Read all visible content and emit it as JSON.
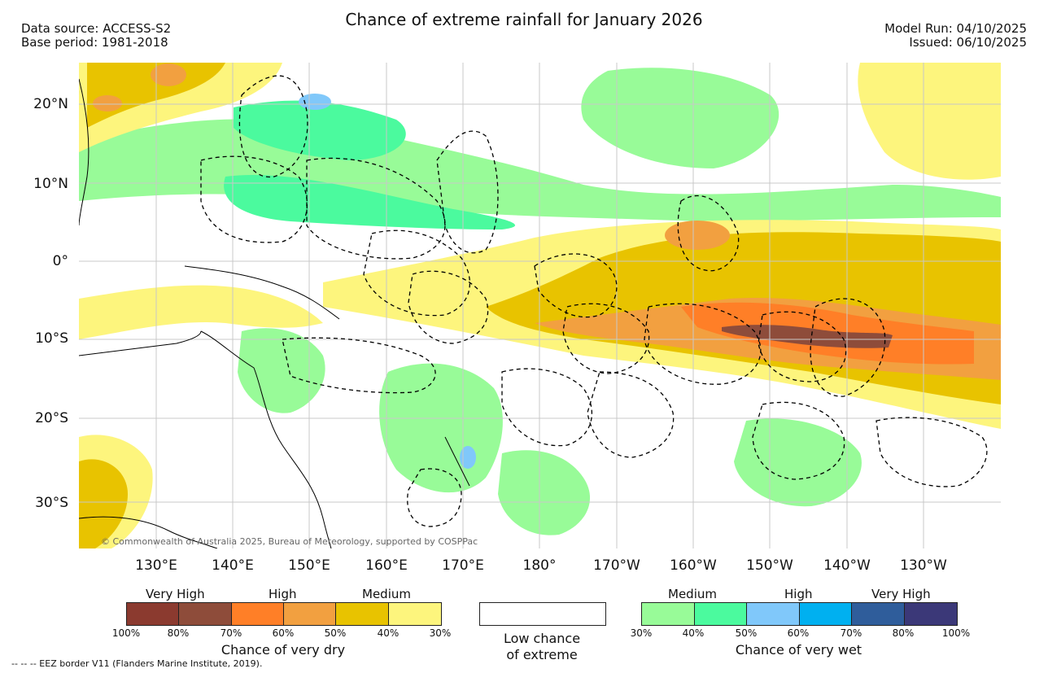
{
  "header": {
    "title": "Chance of extreme rainfall for January 2026",
    "data_source": "Data source: ACCESS-S2",
    "base_period": "Base period: 1981-2018",
    "model_run": "Model Run: 04/10/2025",
    "issued": "Issued: 06/10/2025"
  },
  "map": {
    "lat_labels": [
      "20°N",
      "10°N",
      "0°",
      "10°S",
      "20°S",
      "30°S"
    ],
    "lon_labels": [
      "130°E",
      "140°E",
      "150°E",
      "160°E",
      "170°E",
      "180°",
      "170°W",
      "160°W",
      "150°W",
      "140°W",
      "130°W"
    ],
    "copyright": "© Commonwealth of Australia 2025, Bureau of Meteorology, supported by COSPPac"
  },
  "legend": {
    "dry": {
      "category_labels": [
        "Very High",
        "High",
        "Medium"
      ],
      "colors": [
        "#8b3a2f",
        "#8e4c3a",
        "#ff7f27",
        "#f2a040",
        "#e8c300",
        "#fdf57d"
      ],
      "ticks": [
        "100%",
        "80%",
        "70%",
        "60%",
        "50%",
        "40%",
        "30%"
      ],
      "title": "Chance of very dry"
    },
    "low": {
      "line1": "Low chance",
      "line2": "of extreme"
    },
    "wet": {
      "category_labels": [
        "Medium",
        "High",
        "Very High"
      ],
      "colors": [
        "#98fb98",
        "#4bfa9e",
        "#80c8fa",
        "#00b0f0",
        "#2f5d9b",
        "#3b3878"
      ],
      "ticks": [
        "30%",
        "40%",
        "50%",
        "60%",
        "70%",
        "80%",
        "100%"
      ],
      "title": "Chance of very wet"
    }
  },
  "footer": {
    "eez_note": "--  --  -- EEZ border V11 (Flanders Marine Institute, 2019)."
  }
}
